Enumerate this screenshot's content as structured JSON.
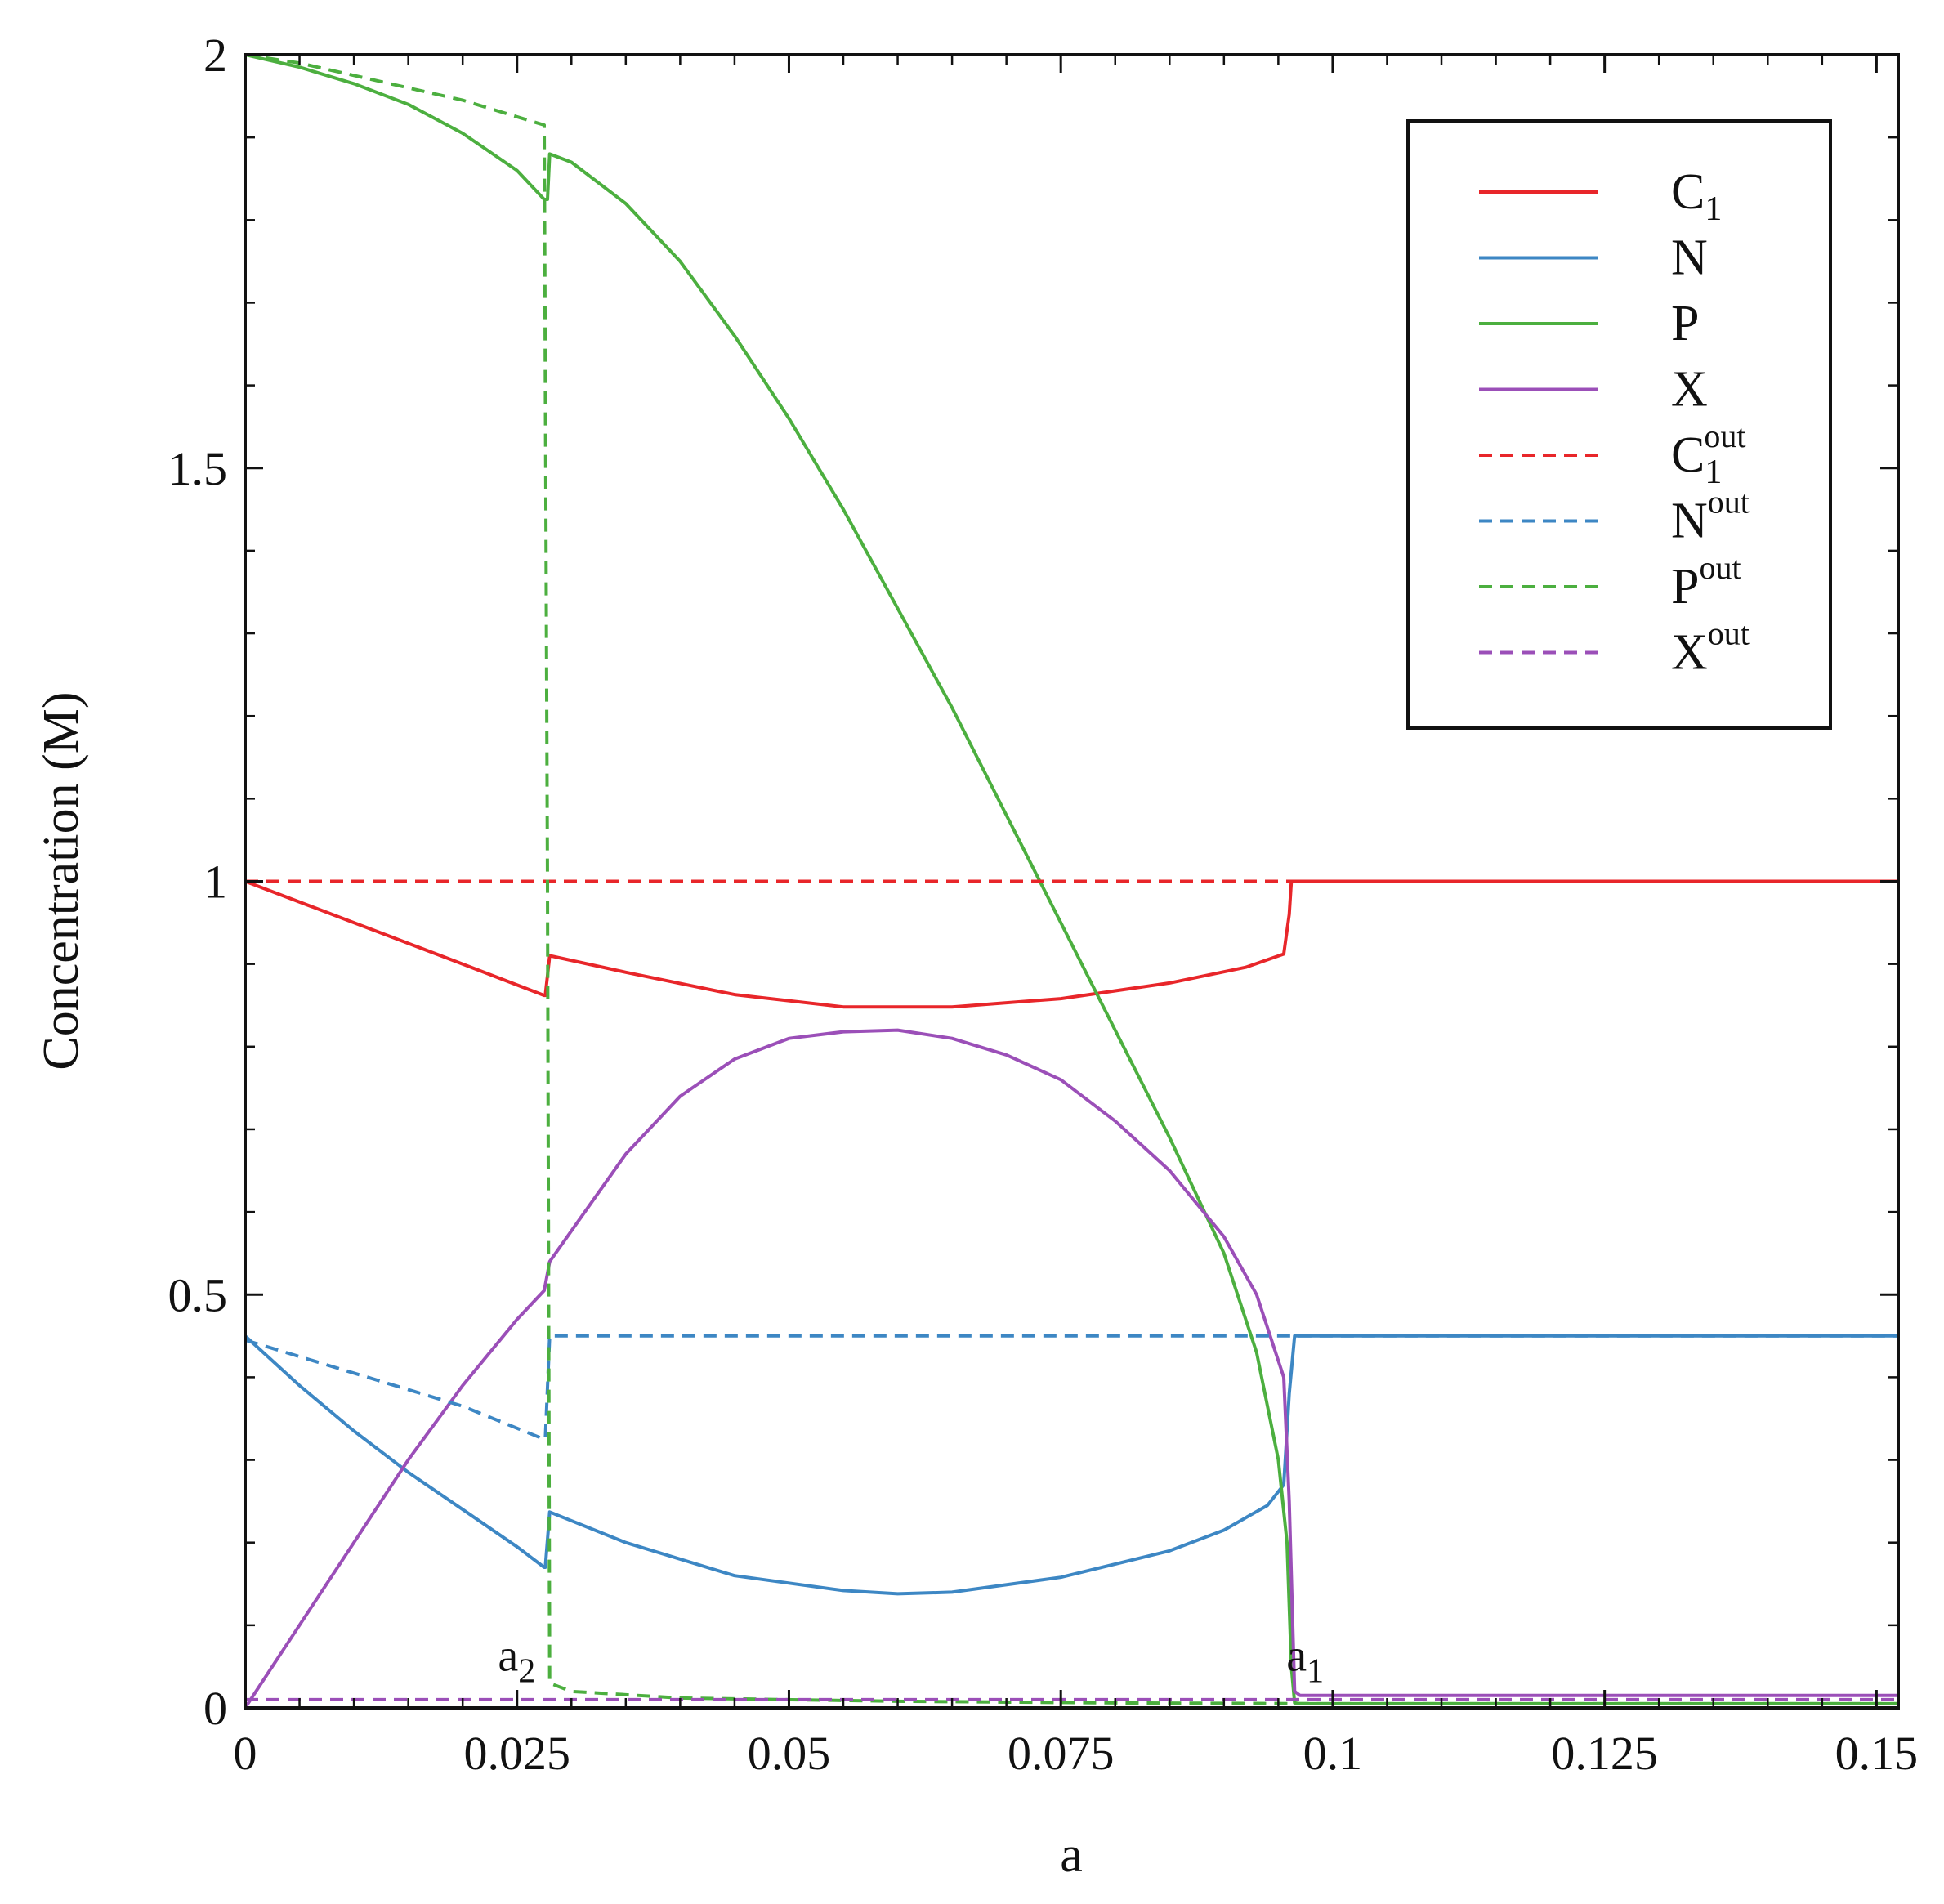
{
  "chart_data": {
    "type": "line",
    "title": "",
    "xlabel": "a",
    "ylabel": "Concentration (M)",
    "xlim": [
      0,
      0.152
    ],
    "ylim": [
      0,
      2
    ],
    "x_ticks": [
      0,
      0.025,
      0.05,
      0.075,
      0.1,
      0.125,
      0.15
    ],
    "x_tick_labels": [
      "0",
      "0.025",
      "0.05",
      "0.075",
      "0.1",
      "0.125",
      "0.15"
    ],
    "y_ticks": [
      0,
      0.5,
      1,
      1.5,
      2
    ],
    "y_tick_labels": [
      "0",
      "0.5",
      "1",
      "1.5",
      "2"
    ],
    "legend_position": "top-right",
    "legend": [
      {
        "base": "C",
        "sub": "1",
        "sup": "",
        "color": "#e8262a",
        "dash": "solid"
      },
      {
        "base": "N",
        "sub": "",
        "sup": "",
        "color": "#3d87c4",
        "dash": "solid"
      },
      {
        "base": "P",
        "sub": "",
        "sup": "",
        "color": "#4caf3f",
        "dash": "solid"
      },
      {
        "base": "X",
        "sub": "",
        "sup": "",
        "color": "#9b4fb8",
        "dash": "solid"
      },
      {
        "base": "C",
        "sub": "1",
        "sup": "out",
        "color": "#e8262a",
        "dash": "dashed"
      },
      {
        "base": "N",
        "sub": "",
        "sup": "out",
        "color": "#3d87c4",
        "dash": "dashed"
      },
      {
        "base": "P",
        "sub": "",
        "sup": "out",
        "color": "#4caf3f",
        "dash": "dashed"
      },
      {
        "base": "X",
        "sub": "",
        "sup": "out",
        "color": "#9b4fb8",
        "dash": "dashed"
      }
    ],
    "annotations": [
      {
        "base": "a",
        "sub": "2",
        "x": 0.0255,
        "y": 0.035
      },
      {
        "base": "a",
        "sub": "1",
        "x": 0.098,
        "y": 0.035
      }
    ],
    "series": [
      {
        "name": "C1",
        "color": "#e8262a",
        "dash": "solid",
        "x": [
          0,
          0.01,
          0.02,
          0.0275,
          0.0276,
          0.028,
          0.035,
          0.045,
          0.055,
          0.065,
          0.075,
          0.085,
          0.092,
          0.0955,
          0.096,
          0.0962,
          0.097,
          0.11,
          0.13,
          0.152
        ],
        "y": [
          1.0,
          0.95,
          0.9,
          0.862,
          0.862,
          0.91,
          0.89,
          0.863,
          0.848,
          0.848,
          0.858,
          0.877,
          0.896,
          0.912,
          0.96,
          1.0,
          1.0,
          1.0,
          1.0,
          1.0
        ]
      },
      {
        "name": "N",
        "color": "#3d87c4",
        "dash": "solid",
        "x": [
          0,
          0.005,
          0.01,
          0.015,
          0.02,
          0.025,
          0.0275,
          0.0276,
          0.028,
          0.035,
          0.045,
          0.055,
          0.06,
          0.065,
          0.075,
          0.085,
          0.09,
          0.094,
          0.0955,
          0.096,
          0.0965,
          0.097,
          0.11,
          0.13,
          0.152
        ],
        "y": [
          0.45,
          0.39,
          0.335,
          0.285,
          0.24,
          0.195,
          0.17,
          0.17,
          0.237,
          0.2,
          0.16,
          0.142,
          0.138,
          0.14,
          0.158,
          0.19,
          0.215,
          0.245,
          0.27,
          0.38,
          0.45,
          0.45,
          0.45,
          0.45,
          0.45
        ]
      },
      {
        "name": "P",
        "color": "#4caf3f",
        "dash": "solid",
        "x": [
          0,
          0.005,
          0.01,
          0.015,
          0.02,
          0.025,
          0.0275,
          0.0278,
          0.028,
          0.03,
          0.035,
          0.04,
          0.045,
          0.05,
          0.055,
          0.06,
          0.065,
          0.07,
          0.075,
          0.08,
          0.085,
          0.09,
          0.093,
          0.095,
          0.0958,
          0.0962,
          0.0965,
          0.097,
          0.11,
          0.13,
          0.152
        ],
        "y": [
          2.0,
          1.985,
          1.965,
          1.94,
          1.905,
          1.86,
          1.825,
          1.825,
          1.88,
          1.87,
          1.82,
          1.75,
          1.66,
          1.56,
          1.45,
          1.33,
          1.21,
          1.08,
          0.95,
          0.82,
          0.69,
          0.55,
          0.43,
          0.3,
          0.2,
          0.05,
          0.006,
          0.005,
          0.005,
          0.005,
          0.005
        ]
      },
      {
        "name": "X",
        "color": "#9b4fb8",
        "dash": "solid",
        "x": [
          0,
          0.005,
          0.01,
          0.015,
          0.02,
          0.025,
          0.0275,
          0.028,
          0.035,
          0.04,
          0.045,
          0.05,
          0.055,
          0.06,
          0.065,
          0.07,
          0.075,
          0.08,
          0.085,
          0.09,
          0.093,
          0.0955,
          0.096,
          0.0965,
          0.097,
          0.11,
          0.13,
          0.152
        ],
        "y": [
          0.0,
          0.1,
          0.2,
          0.3,
          0.39,
          0.47,
          0.505,
          0.54,
          0.67,
          0.74,
          0.785,
          0.81,
          0.818,
          0.82,
          0.81,
          0.79,
          0.76,
          0.71,
          0.65,
          0.57,
          0.5,
          0.4,
          0.25,
          0.02,
          0.015,
          0.015,
          0.015,
          0.015
        ]
      },
      {
        "name": "C1 out",
        "color": "#e8262a",
        "dash": "dashed",
        "x": [
          0,
          0.152
        ],
        "y": [
          1.0,
          1.0
        ]
      },
      {
        "name": "N out",
        "color": "#3d87c4",
        "dash": "dashed",
        "x": [
          0,
          0.01,
          0.02,
          0.0275,
          0.0276,
          0.028,
          0.06,
          0.1,
          0.152
        ],
        "y": [
          0.445,
          0.405,
          0.365,
          0.325,
          0.325,
          0.45,
          0.45,
          0.45,
          0.45
        ]
      },
      {
        "name": "P out",
        "color": "#4caf3f",
        "dash": "dashed",
        "x": [
          0,
          0.005,
          0.01,
          0.015,
          0.02,
          0.025,
          0.0275,
          0.0278,
          0.028,
          0.03,
          0.04,
          0.06,
          0.08,
          0.1,
          0.152
        ],
        "y": [
          2.0,
          1.99,
          1.975,
          1.96,
          1.945,
          1.925,
          1.915,
          1.0,
          0.03,
          0.02,
          0.012,
          0.008,
          0.006,
          0.005,
          0.005
        ]
      },
      {
        "name": "X out",
        "color": "#9b4fb8",
        "dash": "dashed",
        "x": [
          0,
          0.152
        ],
        "y": [
          0.01,
          0.01
        ]
      }
    ]
  }
}
